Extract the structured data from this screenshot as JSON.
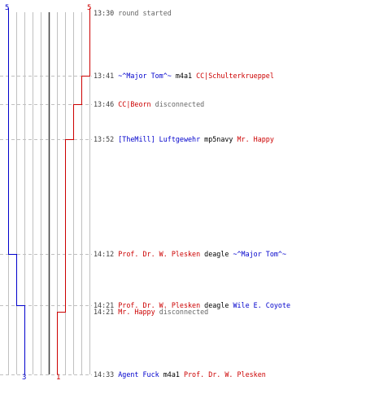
{
  "colors": {
    "blue_team": "#0000cc",
    "red_team": "#cc0000",
    "grid_line": "#c0c0c0",
    "grid_center": "#404040",
    "dashed_guide": "#c0c0c0",
    "info_text": "#666666",
    "time_text": "#404040"
  },
  "score_labels": {
    "blue_start": "5",
    "red_start": "5",
    "blue_end": "3",
    "red_end": "1"
  },
  "events": [
    {
      "time": "13:30",
      "parts": [
        {
          "text": "round started",
          "style": "info"
        }
      ]
    },
    {
      "time": "13:41",
      "parts": [
        {
          "text": "~^Major Tom^~",
          "style": "blue"
        },
        {
          "text": " m4a1 ",
          "style": "weapon"
        },
        {
          "text": "CC|Schulterkrueppel",
          "style": "red"
        }
      ]
    },
    {
      "time": "13:46",
      "parts": [
        {
          "text": "CC|Beorn",
          "style": "red"
        },
        {
          "text": " disconnected",
          "style": "info"
        }
      ]
    },
    {
      "time": "13:52",
      "parts": [
        {
          "text": "[TheMill] Luftgewehr",
          "style": "blue"
        },
        {
          "text": " mp5navy ",
          "style": "weapon"
        },
        {
          "text": "Mr. Happy",
          "style": "red"
        }
      ]
    },
    {
      "time": "14:12",
      "parts": [
        {
          "text": "Prof. Dr. W. Plesken",
          "style": "red"
        },
        {
          "text": " deagle ",
          "style": "weapon"
        },
        {
          "text": "~^Major Tom^~",
          "style": "blue"
        }
      ]
    },
    {
      "time": "14:21",
      "parts": [
        {
          "text": "Prof. Dr. W. Plesken",
          "style": "red"
        },
        {
          "text": " deagle ",
          "style": "weapon"
        },
        {
          "text": "Wile E. Coyote",
          "style": "blue"
        }
      ]
    },
    {
      "time": "14:21",
      "parts": [
        {
          "text": "Mr. Happy",
          "style": "red"
        },
        {
          "text": " disconnected",
          "style": "info"
        }
      ]
    },
    {
      "time": "14:33",
      "parts": [
        {
          "text": "Agent Fuck",
          "style": "blue"
        },
        {
          "text": " m4a1 ",
          "style": "weapon"
        },
        {
          "text": "Prof. Dr. W. Plesken",
          "style": "red"
        }
      ]
    }
  ]
}
